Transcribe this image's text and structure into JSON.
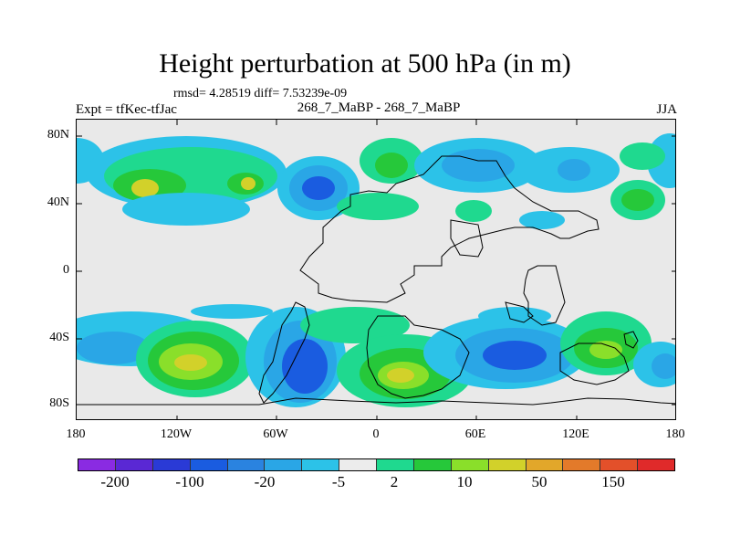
{
  "title": "Height perturbation at 500 hPa (in m)",
  "stats": "rmsd= 4.28519 diff= 7.53239e-09",
  "left_label": "Expt = tfKec-tfJac",
  "subtitle": "268_7_MaBP - 268_7_MaBP",
  "season": "JJA",
  "lat_labels": [
    "80N",
    "40N",
    "0",
    "40S",
    "80S"
  ],
  "lon_labels": [
    "180",
    "120W",
    "60W",
    "0",
    "60E",
    "120E",
    "180"
  ],
  "colorbar": {
    "colors": [
      "#8a2be2",
      "#5a28d4",
      "#2a3ad6",
      "#1a5ce0",
      "#2a83e0",
      "#2aa6e6",
      "#2cc2e8",
      "#ececec",
      "#1fd98f",
      "#26c83a",
      "#8adf2a",
      "#d2d12a",
      "#e2a72a",
      "#e37a2a",
      "#e3502a",
      "#e02a2a"
    ],
    "labels": [
      "-200",
      "-100",
      "-20",
      "-5",
      "2",
      "10",
      "50",
      "150"
    ]
  },
  "colors": {
    "background": "#e9e9e9",
    "level_neg1": "#2cc2e8",
    "level_neg2": "#2aa6e6",
    "level_neg3": "#1a5ce0",
    "level_pos1": "#1fd98f",
    "level_pos2": "#26c83a",
    "level_pos3": "#8adf2a",
    "level_pos4": "#d2d12a"
  }
}
